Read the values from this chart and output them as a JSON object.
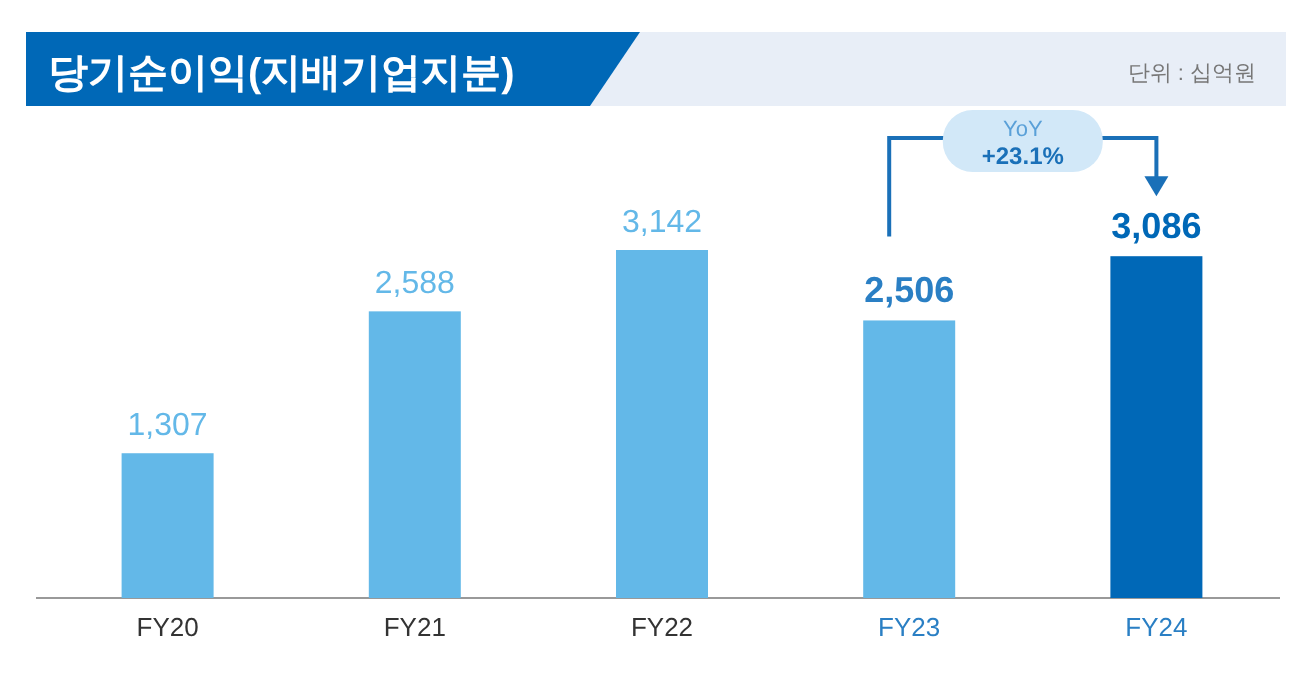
{
  "chart_data": {
    "type": "bar",
    "title": "당기순이익(지배기업지분)",
    "annotations": [
      "단위 : 십억원",
      "YoY",
      "+23.1%"
    ],
    "categories": [
      "FY20",
      "FY21",
      "FY22",
      "FY23",
      "FY24"
    ],
    "values": [
      1307,
      2588,
      3142,
      2506,
      3086
    ],
    "colors": [
      "#63b8e8",
      "#63b8e8",
      "#63b8e8",
      "#63b8e8",
      "#0068b7"
    ],
    "value_labels": [
      "1,307",
      "2,588",
      "3,142",
      "2,506",
      "3,086"
    ]
  }
}
